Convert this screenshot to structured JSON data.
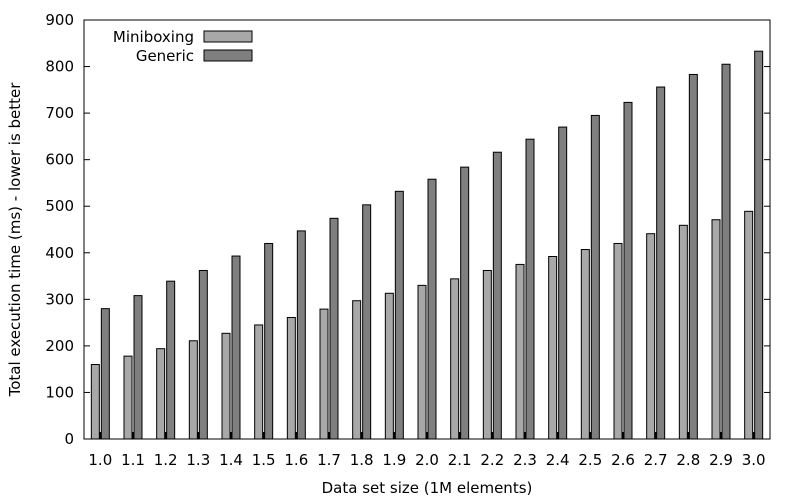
{
  "colors": {
    "miniboxing": "#a8a8a8",
    "generic": "#7f7f7f",
    "stroke": "#000000"
  },
  "chart_data": {
    "type": "bar",
    "xlabel": "Data set size (1M elements)",
    "ylabel": "Total execution time (ms) - lower is better",
    "ylim": [
      0,
      900
    ],
    "yticks": [
      0,
      100,
      200,
      300,
      400,
      500,
      600,
      700,
      800,
      900
    ],
    "categories": [
      "1.0",
      "1.1",
      "1.2",
      "1.3",
      "1.4",
      "1.5",
      "1.6",
      "1.7",
      "1.8",
      "1.9",
      "2.0",
      "2.1",
      "2.2",
      "2.3",
      "2.4",
      "2.5",
      "2.6",
      "2.7",
      "2.8",
      "2.9",
      "3.0"
    ],
    "legend": "top-left",
    "grid": false,
    "series": [
      {
        "name": "Miniboxing",
        "values": [
          160,
          178,
          194,
          211,
          227,
          245,
          261,
          279,
          297,
          313,
          330,
          344,
          362,
          375,
          392,
          407,
          420,
          441,
          459,
          471,
          489
        ]
      },
      {
        "name": "Generic",
        "values": [
          280,
          308,
          339,
          362,
          393,
          420,
          447,
          474,
          503,
          532,
          558,
          584,
          616,
          644,
          670,
          695,
          723,
          756,
          783,
          805,
          833
        ]
      }
    ]
  }
}
